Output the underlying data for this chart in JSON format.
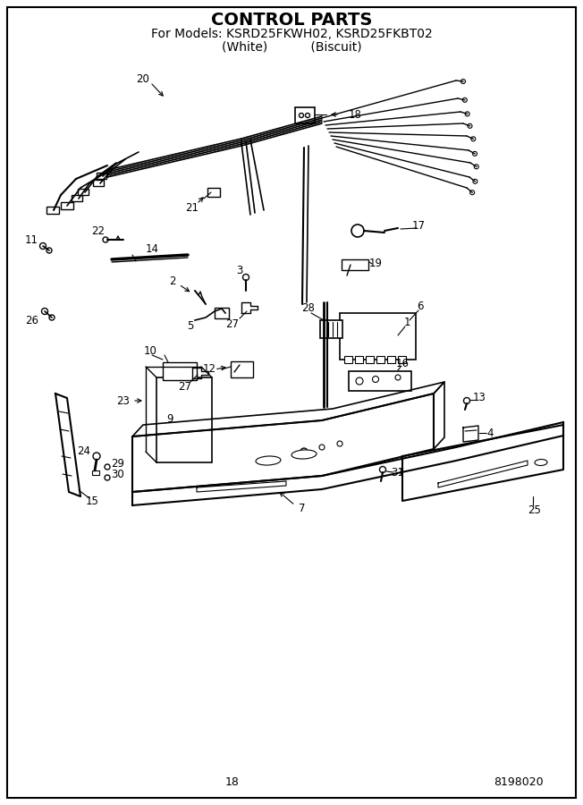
{
  "title": "CONTROL PARTS",
  "subtitle": "For Models: KSRD25FKWH02, KSRD25FKBT02",
  "subtitle2": "(White)           (Biscuit)",
  "page_number": "18",
  "doc_number": "8198020",
  "background_color": "#ffffff",
  "line_color": "#000000",
  "title_fontsize": 14,
  "subtitle_fontsize": 10,
  "footer_fontsize": 9,
  "label_fontsize": 8.5,
  "fig_width": 6.52,
  "fig_height": 9.0,
  "dpi": 100
}
